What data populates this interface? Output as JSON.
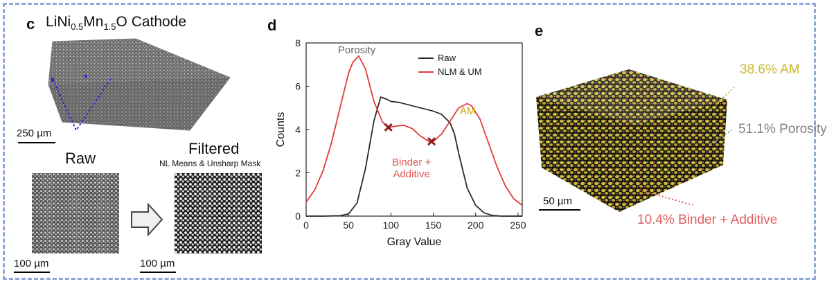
{
  "panel_c": {
    "letter": "c",
    "title_main": "LiNi",
    "title_sub1": "0.5",
    "title_mid": "Mn",
    "title_sub2": "1.5",
    "title_end": "O Cathode",
    "scale_top": "250 µm",
    "raw_label": "Raw",
    "filtered_label": "Filtered",
    "filter_caption": "NL Means & Unsharp Mask",
    "scale_left": "100 µm",
    "scale_right": "100 µm"
  },
  "panel_d": {
    "letter": "d",
    "annotations": {
      "porosity": "Porosity",
      "am": "AM",
      "binder_line1": "Binder +",
      "binder_line2": "Additive"
    },
    "colors": {
      "raw": "#2a2a2a",
      "filtered": "#e23a3a",
      "am_text": "#c9a400",
      "binder_text": "#e05555",
      "porosity_text": "#666666"
    }
  },
  "panel_e": {
    "letter": "e",
    "am_label": "38.6% AM",
    "porosity_label": "51.1% Porosity",
    "binder_label": "10.4% Binder + Additive",
    "scale": "50 µm",
    "colors": {
      "am": "#c8c040",
      "porosity": "#808080",
      "binder": "#e06060"
    }
  },
  "chart_data": {
    "type": "line",
    "xlabel": "Gray Value",
    "ylabel": "Counts",
    "xlim": [
      0,
      255
    ],
    "ylim": [
      0,
      8
    ],
    "xticks": [
      0,
      50,
      100,
      150,
      200,
      250
    ],
    "yticks": [
      0,
      2,
      4,
      6,
      8
    ],
    "legend_position": "top-right",
    "series": [
      {
        "name": "Raw",
        "color": "#2a2a2a",
        "x": [
          0,
          20,
          40,
          50,
          60,
          70,
          80,
          88,
          95,
          100,
          110,
          120,
          130,
          140,
          150,
          160,
          170,
          175,
          180,
          190,
          200,
          210,
          220,
          230,
          255
        ],
        "y": [
          0,
          0,
          0.02,
          0.1,
          0.6,
          2.2,
          4.4,
          5.5,
          5.4,
          5.3,
          5.25,
          5.15,
          5.05,
          4.95,
          4.85,
          4.7,
          4.3,
          3.8,
          2.9,
          1.3,
          0.5,
          0.15,
          0.03,
          0,
          0
        ]
      },
      {
        "name": "NLM & UM",
        "color": "#e23a3a",
        "x": [
          0,
          10,
          20,
          30,
          40,
          50,
          55,
          62,
          70,
          80,
          90,
          97,
          105,
          115,
          125,
          135,
          145,
          150,
          160,
          170,
          180,
          190,
          195,
          205,
          215,
          225,
          235,
          245,
          255
        ],
        "y": [
          0.65,
          1.2,
          2.1,
          3.4,
          5.0,
          6.6,
          7.1,
          7.4,
          6.8,
          5.3,
          4.35,
          4.1,
          4.15,
          4.2,
          4.05,
          3.7,
          3.45,
          3.45,
          3.8,
          4.4,
          5.0,
          5.2,
          5.1,
          4.5,
          3.4,
          2.3,
          1.4,
          0.8,
          0.5
        ]
      }
    ],
    "markers": [
      {
        "x": 97,
        "y": 4.1
      },
      {
        "x": 148,
        "y": 3.45
      }
    ]
  }
}
